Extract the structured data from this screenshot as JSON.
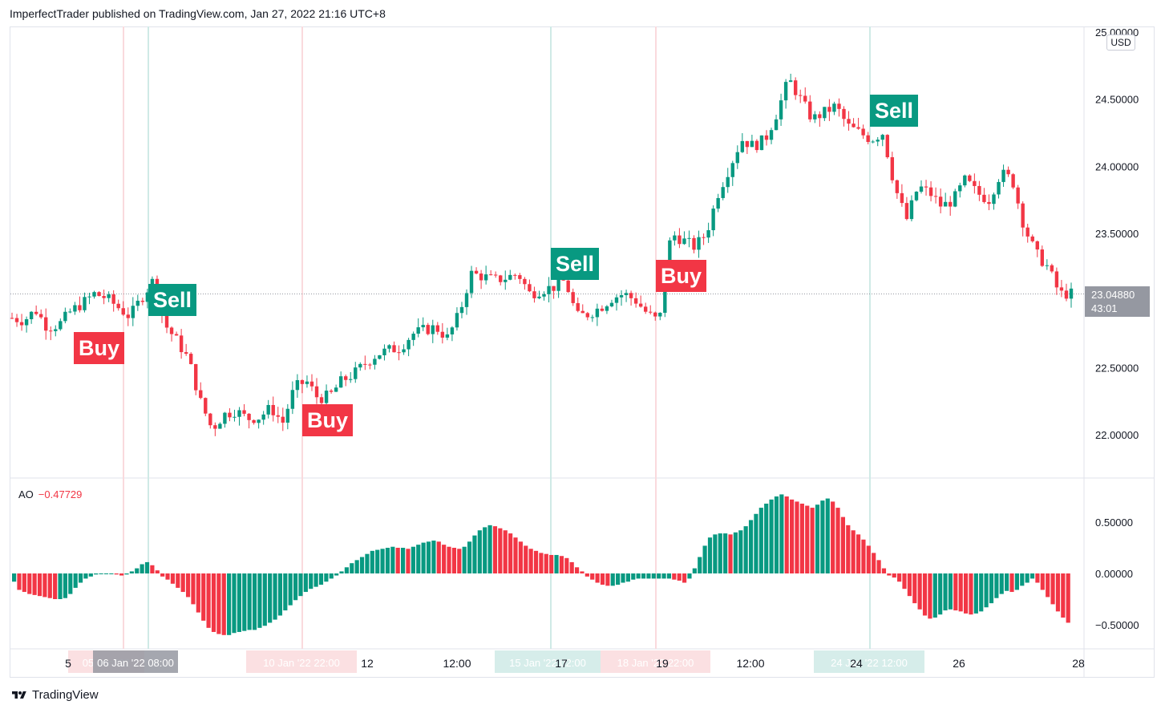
{
  "header": {
    "published_line": "ImperfectTrader published on TradingView.com, Jan 27, 2022 21:16 UTC+8"
  },
  "price_axis": {
    "currency": "USD",
    "last_price": "23.04880",
    "countdown": "43:01"
  },
  "signals": [
    {
      "label": "Buy",
      "type": "buy"
    },
    {
      "label": "Sell",
      "type": "sell"
    },
    {
      "label": "Buy",
      "type": "buy"
    },
    {
      "label": "Sell",
      "type": "sell"
    },
    {
      "label": "Buy",
      "type": "buy"
    },
    {
      "label": "Sell",
      "type": "sell"
    }
  ],
  "indicator": {
    "name": "AO",
    "value": "−0.47729"
  },
  "time_axis_highlights": [
    "05 Jan '22",
    "06 Jan '22 08:00",
    "10 Jan '22 22:00",
    "15 Jan '22 02:00",
    "18 Jan '22 22:00",
    "24 Jan '22 12:00"
  ],
  "footer": {
    "brand": "TradingView"
  },
  "colors": {
    "up": "#089981",
    "down": "#f23645",
    "buy_line": "#fadadd",
    "sell_line": "#cfeae6"
  },
  "chart_data": [
    {
      "type": "candlestick",
      "title": "",
      "ylim": [
        21.5,
        25.05
      ],
      "y_ticks": [
        "22.00000",
        "22.50000",
        "23.00000",
        "23.50000",
        "24.00000",
        "24.50000",
        "25.00000"
      ],
      "x_ticks": [
        "5",
        "12:00",
        "12",
        "12:00",
        "17",
        "19",
        "12:00",
        "24",
        "26",
        "28"
      ],
      "close_path": [
        22.87,
        22.85,
        22.93,
        22.8,
        22.82,
        22.92,
        22.98,
        23.05,
        23.02,
        22.95,
        22.88,
        23.02,
        23.15,
        22.82,
        22.7,
        22.56,
        22.25,
        22.04,
        22.15,
        22.18,
        22.12,
        22.13,
        22.2,
        22.09,
        22.35,
        22.4,
        22.27,
        22.29,
        22.4,
        22.45,
        22.53,
        22.6,
        22.63,
        22.65,
        22.75,
        22.78,
        22.8,
        22.72,
        22.9,
        23.2,
        23.18,
        23.15,
        23.17,
        23.2,
        23.05,
        23.08,
        23.1,
        23.15,
        22.88,
        22.9,
        22.95,
        23.02,
        23.05,
        23.0,
        22.9,
        22.84,
        23.5,
        23.45,
        23.4,
        23.5,
        23.8,
        24.0,
        24.2,
        24.15,
        24.2,
        24.4,
        24.65,
        24.5,
        24.35,
        24.4,
        24.45,
        24.3,
        24.25,
        24.2,
        24.25,
        23.85,
        23.6,
        23.85,
        23.8,
        23.7,
        23.75,
        23.9,
        23.8,
        23.75,
        23.95,
        23.9,
        23.55,
        23.35,
        23.25,
        23.05,
        23.05
      ],
      "last_price": 23.0488
    },
    {
      "type": "bar",
      "title": "AO",
      "ylim": [
        -0.65,
        0.8
      ],
      "y_ticks": [
        "0.50000",
        "0.00000",
        "-0.50000"
      ],
      "values": [
        -0.08,
        -0.16,
        -0.18,
        -0.2,
        -0.21,
        -0.22,
        -0.23,
        -0.24,
        -0.25,
        -0.25,
        -0.24,
        -0.2,
        -0.14,
        -0.09,
        -0.05,
        -0.03,
        -0.01,
        0.0,
        0.0,
        0.0,
        -0.01,
        -0.02,
        -0.01,
        0.02,
        0.05,
        0.09,
        0.11,
        0.08,
        0.03,
        -0.03,
        -0.06,
        -0.1,
        -0.14,
        -0.18,
        -0.23,
        -0.3,
        -0.38,
        -0.46,
        -0.53,
        -0.57,
        -0.59,
        -0.6,
        -0.6,
        -0.58,
        -0.57,
        -0.56,
        -0.55,
        -0.55,
        -0.53,
        -0.51,
        -0.48,
        -0.45,
        -0.41,
        -0.36,
        -0.31,
        -0.26,
        -0.22,
        -0.18,
        -0.15,
        -0.13,
        -0.11,
        -0.08,
        -0.05,
        -0.02,
        0.02,
        0.06,
        0.1,
        0.13,
        0.16,
        0.19,
        0.22,
        0.23,
        0.24,
        0.25,
        0.26,
        0.25,
        0.25,
        0.24,
        0.26,
        0.28,
        0.3,
        0.31,
        0.32,
        0.31,
        0.28,
        0.26,
        0.25,
        0.24,
        0.26,
        0.31,
        0.37,
        0.42,
        0.45,
        0.47,
        0.46,
        0.44,
        0.42,
        0.39,
        0.35,
        0.31,
        0.27,
        0.24,
        0.22,
        0.2,
        0.19,
        0.18,
        0.18,
        0.17,
        0.15,
        0.11,
        0.06,
        0.02,
        -0.03,
        -0.06,
        -0.09,
        -0.11,
        -0.12,
        -0.12,
        -0.11,
        -0.09,
        -0.08,
        -0.06,
        -0.05,
        -0.05,
        -0.05,
        -0.05,
        -0.05,
        -0.05,
        -0.05,
        -0.06,
        -0.07,
        -0.09,
        -0.05,
        0.05,
        0.16,
        0.27,
        0.35,
        0.38,
        0.39,
        0.39,
        0.38,
        0.4,
        0.42,
        0.46,
        0.52,
        0.58,
        0.64,
        0.68,
        0.72,
        0.75,
        0.77,
        0.75,
        0.72,
        0.7,
        0.68,
        0.66,
        0.64,
        0.67,
        0.71,
        0.73,
        0.7,
        0.64,
        0.55,
        0.47,
        0.42,
        0.38,
        0.33,
        0.27,
        0.2,
        0.13,
        0.05,
        -0.02,
        -0.04,
        -0.08,
        -0.15,
        -0.22,
        -0.29,
        -0.35,
        -0.41,
        -0.44,
        -0.43,
        -0.4,
        -0.36,
        -0.35,
        -0.36,
        -0.37,
        -0.39,
        -0.4,
        -0.39,
        -0.37,
        -0.33,
        -0.29,
        -0.24,
        -0.2,
        -0.17,
        -0.18,
        -0.16,
        -0.12,
        -0.09,
        -0.05,
        -0.09,
        -0.16,
        -0.23,
        -0.3,
        -0.37,
        -0.43,
        -0.48
      ]
    }
  ]
}
